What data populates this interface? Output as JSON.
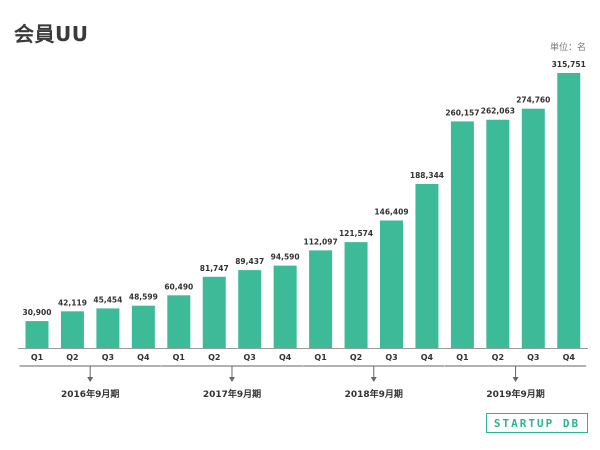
{
  "header": {
    "title": "会員UU",
    "unit": "単位：名"
  },
  "logo": {
    "text": "STARTUP DB"
  },
  "colors": {
    "bar": "#3dbb98",
    "text": "#333333",
    "axis": "#666666"
  },
  "chart_data": {
    "type": "bar",
    "title": "会員UU",
    "ylabel": "",
    "xlabel": "",
    "ylim": [
      0,
      330000
    ],
    "categories": [
      "Q1",
      "Q2",
      "Q3",
      "Q4",
      "Q1",
      "Q2",
      "Q3",
      "Q4",
      "Q1",
      "Q2",
      "Q3",
      "Q4",
      "Q1",
      "Q2",
      "Q3",
      "Q4"
    ],
    "values": [
      30900,
      42119,
      45454,
      48599,
      60490,
      81747,
      89437,
      94590,
      112097,
      121574,
      146409,
      188344,
      260157,
      262063,
      274760,
      315751
    ],
    "value_labels": [
      "30,900",
      "42,119",
      "45,454",
      "48,599",
      "60,490",
      "81,747",
      "89,437",
      "94,590",
      "112,097",
      "121,574",
      "146,409",
      "188,344",
      "260,157",
      "262,063",
      "274,760",
      "315,751"
    ],
    "groups": [
      {
        "label": "2016年9月期",
        "start": 0,
        "end": 3
      },
      {
        "label": "2017年9月期",
        "start": 4,
        "end": 7
      },
      {
        "label": "2018年9月期",
        "start": 8,
        "end": 11
      },
      {
        "label": "2019年9月期",
        "start": 12,
        "end": 15
      }
    ]
  }
}
